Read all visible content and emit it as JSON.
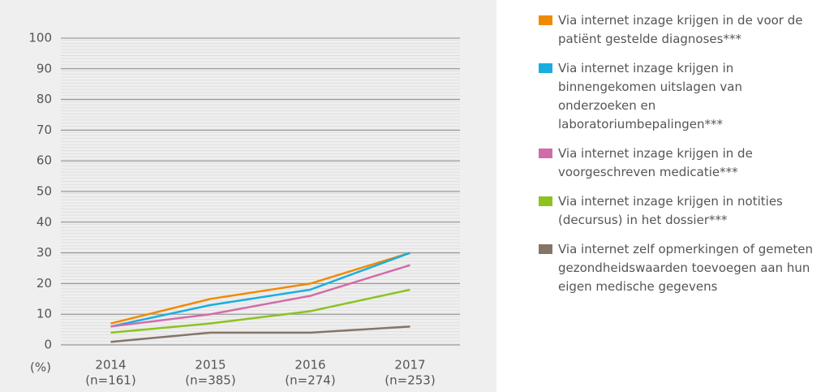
{
  "chart_data": {
    "type": "line",
    "categories": [
      "2014",
      "2015",
      "2016",
      "2017"
    ],
    "sample_sizes": [
      "(n=161)",
      "(n=385)",
      "(n=274)",
      "(n=253)"
    ],
    "y_label": "(%)",
    "ylim": [
      0,
      100
    ],
    "yticks": [
      0,
      10,
      20,
      30,
      40,
      50,
      60,
      70,
      80,
      90,
      100
    ],
    "grid": true,
    "legend": "right",
    "series": [
      {
        "name": "Via internet inzage krijgen in de voor de patiënt gestelde diagnoses***",
        "color": "#f08a00",
        "values": [
          7,
          15,
          20,
          30
        ]
      },
      {
        "name": "Via internet inzage krijgen in binnengekomen uitslagen van onderzoeken en laboratoriumbepalingen***",
        "color": "#1aaee0",
        "values": [
          6,
          13,
          18,
          30
        ]
      },
      {
        "name": "Via internet inzage krijgen in de voorgeschreven medicatie***",
        "color": "#d26ca8",
        "values": [
          6,
          10,
          16,
          26
        ]
      },
      {
        "name": "Via internet inzage krijgen in notities (decursus) in het dossier***",
        "color": "#8dc21f",
        "values": [
          4,
          7,
          11,
          18
        ]
      },
      {
        "name": "Via internet zelf opmerkingen of gemeten gezondheidswaarden toevoegen aan hun eigen medische gegevens",
        "color": "#857568",
        "values": [
          1,
          4,
          4,
          6
        ]
      }
    ]
  }
}
